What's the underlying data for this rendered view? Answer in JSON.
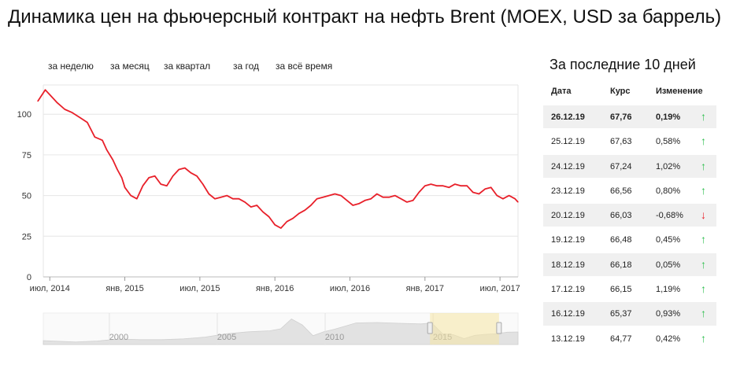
{
  "page": {
    "title": "Динамика цен на фьючерсный контракт на нефть Brent (MOEX, USD за баррель)"
  },
  "periods": [
    {
      "label": "за неделю"
    },
    {
      "label": "за месяц"
    },
    {
      "label": "за квартал"
    },
    {
      "label": "за год"
    },
    {
      "label": "за всё время"
    }
  ],
  "side": {
    "title": "За последние 10 дней",
    "columns": {
      "date": "Дата",
      "rate": "Курс",
      "change": "Изменение"
    },
    "rows": [
      {
        "date": "26.12.19",
        "rate": "67,76",
        "change": "0,19%",
        "dir": "up"
      },
      {
        "date": "25.12.19",
        "rate": "67,63",
        "change": "0,58%",
        "dir": "up"
      },
      {
        "date": "24.12.19",
        "rate": "67,24",
        "change": "1,02%",
        "dir": "up"
      },
      {
        "date": "23.12.19",
        "rate": "66,56",
        "change": "0,80%",
        "dir": "up"
      },
      {
        "date": "20.12.19",
        "rate": "66,03",
        "change": "-0,68%",
        "dir": "down"
      },
      {
        "date": "19.12.19",
        "rate": "66,48",
        "change": "0,45%",
        "dir": "up"
      },
      {
        "date": "18.12.19",
        "rate": "66,18",
        "change": "0,05%",
        "dir": "up"
      },
      {
        "date": "17.12.19",
        "rate": "66,15",
        "change": "1,19%",
        "dir": "up"
      },
      {
        "date": "16.12.19",
        "rate": "65,37",
        "change": "0,93%",
        "dir": "up"
      },
      {
        "date": "13.12.19",
        "rate": "64,77",
        "change": "0,42%",
        "dir": "up"
      }
    ],
    "arrows": {
      "up": "↑",
      "down": "↓"
    },
    "colors": {
      "up": "#2fbf4f",
      "down": "#e8202a"
    }
  },
  "chart_data": {
    "type": "line",
    "yticks": [
      0,
      25,
      50,
      75,
      100
    ],
    "ylim": [
      0,
      118
    ],
    "xlim": [
      2014.42,
      2017.62
    ],
    "xticks": [
      {
        "x": 2014.5,
        "label": "июл, 2014"
      },
      {
        "x": 2015.0,
        "label": "янв, 2015"
      },
      {
        "x": 2015.5,
        "label": "июл, 2015"
      },
      {
        "x": 2016.0,
        "label": "янв, 2016"
      },
      {
        "x": 2016.5,
        "label": "июл, 2016"
      },
      {
        "x": 2017.0,
        "label": "янв, 2017"
      },
      {
        "x": 2017.5,
        "label": "июл, 2017"
      }
    ],
    "line_color": "#e8202a",
    "x": [
      2014.42,
      2014.47,
      2014.5,
      2014.55,
      2014.6,
      2014.65,
      2014.7,
      2014.75,
      2014.8,
      2014.85,
      2014.88,
      2014.92,
      2014.95,
      2014.98,
      2015.0,
      2015.04,
      2015.08,
      2015.12,
      2015.16,
      2015.2,
      2015.24,
      2015.28,
      2015.32,
      2015.36,
      2015.4,
      2015.44,
      2015.48,
      2015.52,
      2015.56,
      2015.6,
      2015.64,
      2015.68,
      2015.72,
      2015.76,
      2015.8,
      2015.84,
      2015.88,
      2015.92,
      2015.96,
      2016.0,
      2016.04,
      2016.08,
      2016.12,
      2016.16,
      2016.2,
      2016.24,
      2016.28,
      2016.32,
      2016.36,
      2016.4,
      2016.44,
      2016.48,
      2016.52,
      2016.56,
      2016.6,
      2016.64,
      2016.68,
      2016.72,
      2016.76,
      2016.8,
      2016.84,
      2016.88,
      2016.92,
      2016.96,
      2017.0,
      2017.04,
      2017.08,
      2017.12,
      2017.16,
      2017.2,
      2017.24,
      2017.28,
      2017.32,
      2017.36,
      2017.4,
      2017.44,
      2017.48,
      2017.52,
      2017.56,
      2017.6,
      2017.62
    ],
    "y": [
      108,
      115,
      112,
      107,
      103,
      101,
      98,
      95,
      86,
      84,
      78,
      72,
      66,
      61,
      55,
      50,
      48,
      56,
      61,
      62,
      57,
      56,
      62,
      66,
      67,
      64,
      62,
      57,
      51,
      48,
      49,
      50,
      48,
      48,
      46,
      43,
      44,
      40,
      37,
      32,
      30,
      34,
      36,
      39,
      41,
      44,
      48,
      49,
      50,
      51,
      50,
      47,
      44,
      45,
      47,
      48,
      51,
      49,
      49,
      50,
      48,
      46,
      47,
      52,
      56,
      57,
      56,
      56,
      55,
      57,
      56,
      56,
      52,
      51,
      54,
      55,
      50,
      48,
      50,
      48,
      46
    ],
    "navigator": {
      "years": [
        {
          "x": 2000,
          "label": "2000"
        },
        {
          "x": 2005,
          "label": "2005"
        },
        {
          "x": 2010,
          "label": "2010"
        },
        {
          "x": 2015,
          "label": "2015"
        }
      ],
      "xlim": [
        1996.5,
        2018.5
      ],
      "selection": [
        2014.42,
        2017.62
      ],
      "x": [
        1996.5,
        1998,
        1999,
        2000,
        2001,
        2002,
        2003,
        2004,
        2005,
        2006,
        2007,
        2007.5,
        2008,
        2008.5,
        2009,
        2009.5,
        2010,
        2011,
        2012,
        2013,
        2014,
        2014.5,
        2015,
        2015.5,
        2016,
        2016.5,
        2017,
        2017.5,
        2018,
        2018.5
      ],
      "y": [
        20,
        13,
        18,
        28,
        25,
        25,
        29,
        38,
        55,
        65,
        70,
        80,
        130,
        100,
        45,
        65,
        78,
        110,
        112,
        108,
        105,
        110,
        55,
        50,
        30,
        47,
        52,
        55,
        63,
        64
      ]
    }
  }
}
